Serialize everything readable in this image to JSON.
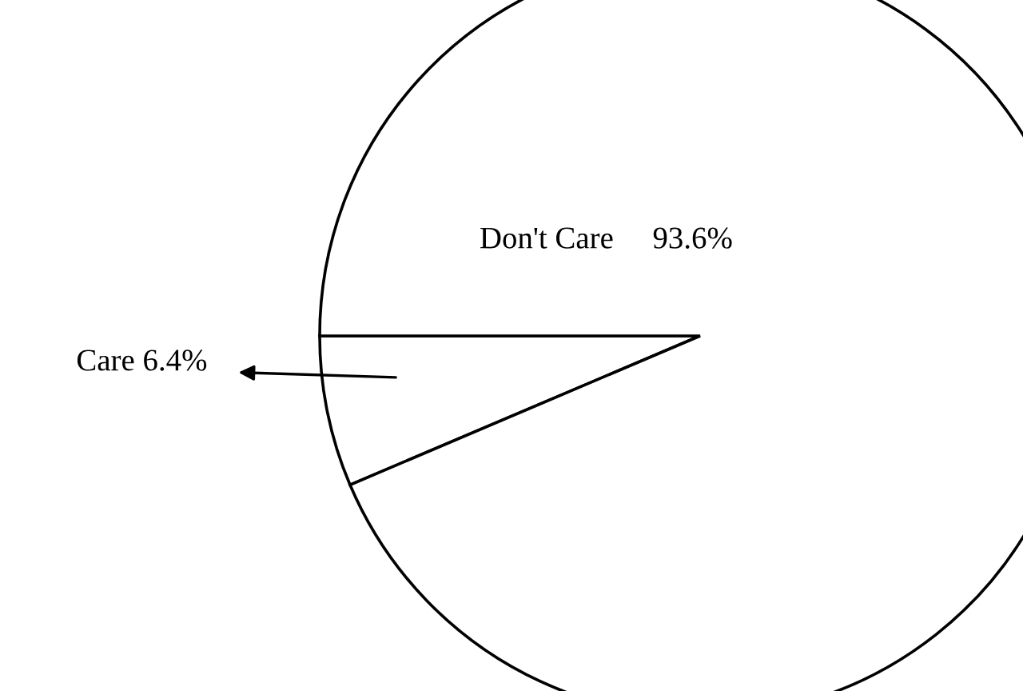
{
  "chart_data": {
    "type": "pie",
    "categories": [
      "Care",
      "Don't Care"
    ],
    "values": [
      6.4,
      93.6
    ],
    "colors": [
      "#ffffff",
      "#ffffff"
    ],
    "value_labels": [
      "6.4%",
      "93.6%"
    ]
  }
}
